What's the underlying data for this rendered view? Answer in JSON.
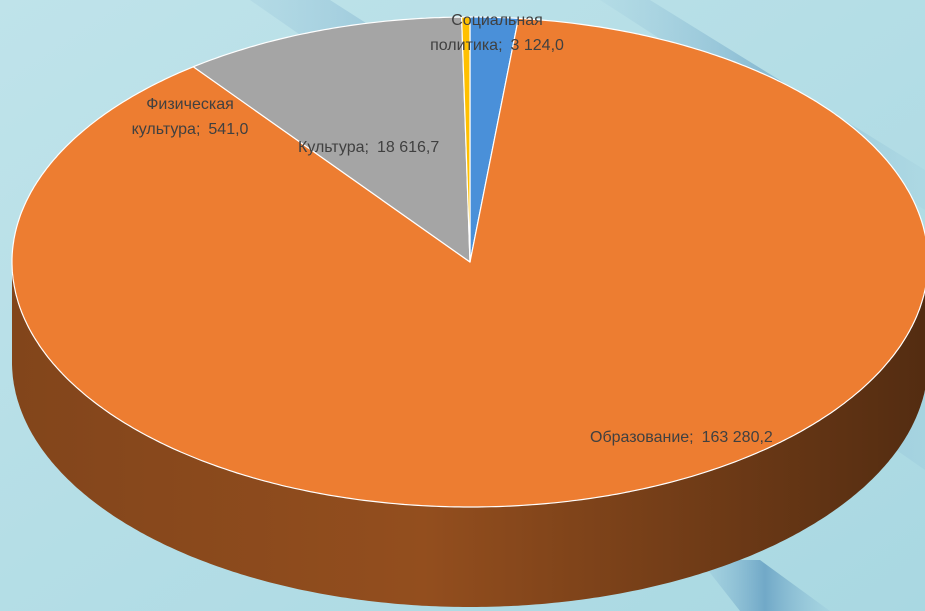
{
  "chart_data": {
    "type": "pie",
    "3d": true,
    "categories": [
      "Социальная политика",
      "Образование",
      "Культура",
      "Физическая культура"
    ],
    "values": [
      3124.0,
      163280.2,
      18616.7,
      541.0
    ],
    "value_labels": [
      "3 124,0",
      "163 280,2",
      "18 616,7",
      "541,0"
    ],
    "label_separator": ";",
    "colors": [
      "#4a90d9",
      "#ed7d31",
      "#a5a5a5",
      "#ffc000"
    ]
  }
}
